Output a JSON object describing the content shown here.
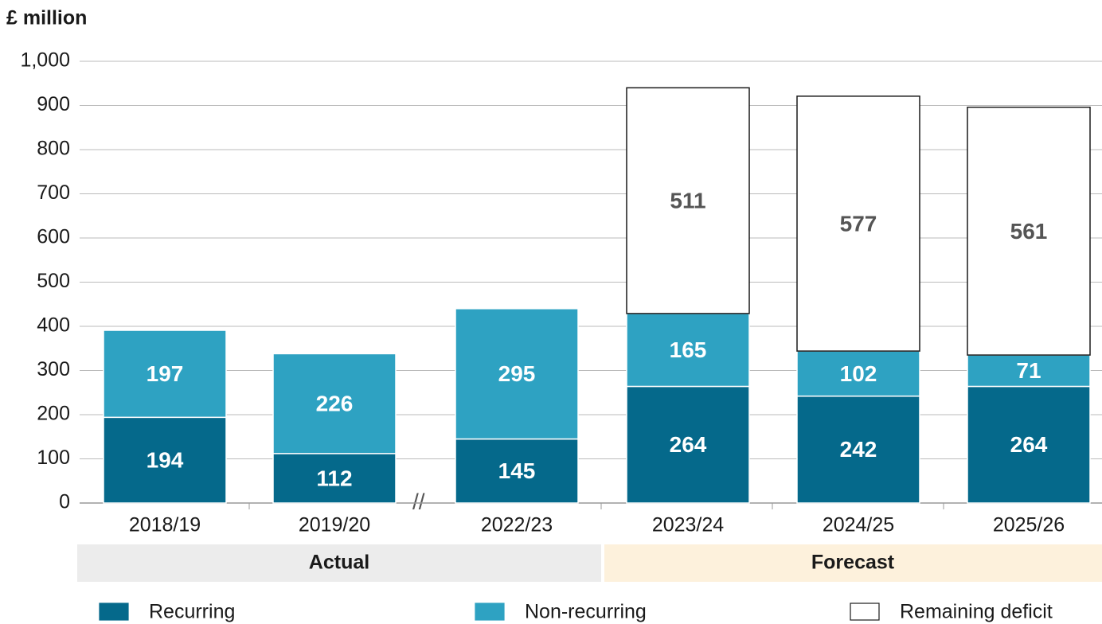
{
  "chart_data": {
    "type": "stacked_bar",
    "y_label": "£ million",
    "categories": [
      "2018/19",
      "2019/20",
      "2022/23",
      "2023/24",
      "2024/25",
      "2025/26"
    ],
    "series": [
      {
        "name": "Recurring",
        "color": "#05698b",
        "values": [
          194,
          112,
          145,
          264,
          242,
          264
        ]
      },
      {
        "name": "Non-recurring",
        "color": "#2ea2c2",
        "values": [
          197,
          226,
          295,
          165,
          102,
          71
        ]
      },
      {
        "name": "Remaining deficit",
        "color": "#ffffff",
        "values": [
          null,
          null,
          null,
          511,
          577,
          561
        ]
      }
    ],
    "groups": [
      "Actual",
      "Forecast"
    ],
    "ylim": [
      0,
      1000
    ],
    "yticks": [
      0,
      100,
      200,
      300,
      400,
      500,
      600,
      700,
      800,
      900,
      {
        "value": 1000,
        "label": "1,000"
      }
    ],
    "grid": true
  }
}
